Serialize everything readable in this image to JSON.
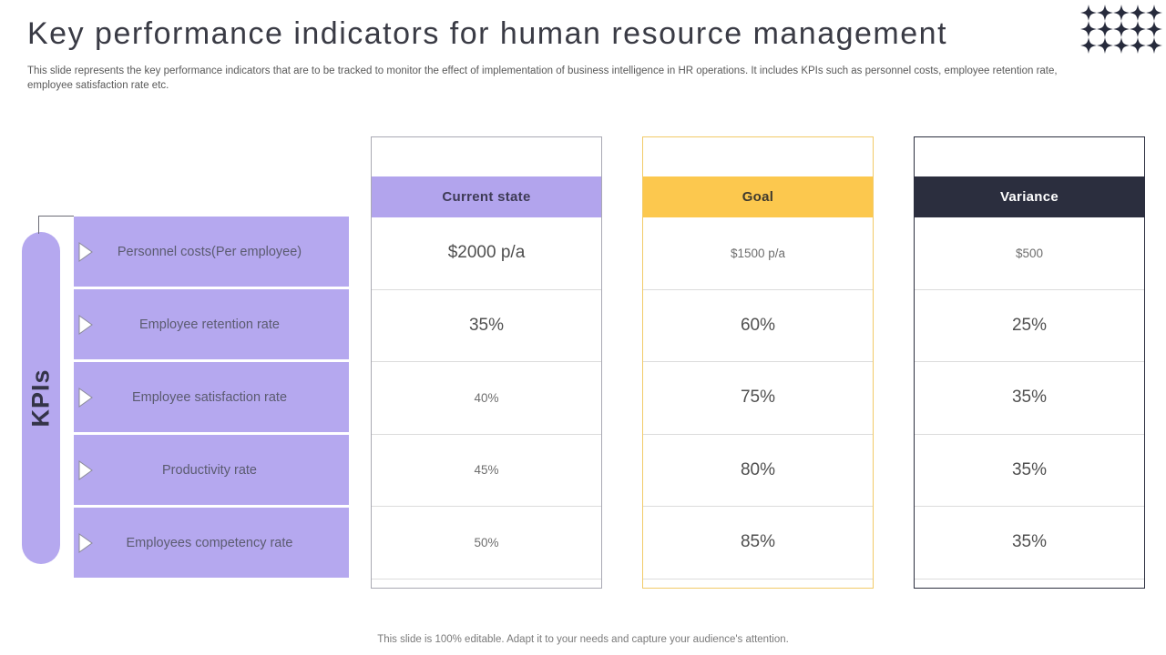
{
  "slide": {
    "title": "Key performance indicators for human resource management",
    "subtitle": "This slide represents the key performance indicators that are to be tracked to monitor the effect of implementation of business intelligence in HR operations. It includes KPIs such as personnel costs, employee retention rate, employee satisfaction rate etc.",
    "footer": "This slide is 100% editable. Adapt it to your needs and capture your audience's attention."
  },
  "kpi_panel": {
    "side_label": "KPIs",
    "items": [
      "Personnel costs(Per employee)",
      "Employee retention rate",
      "Employee satisfaction rate",
      "Productivity rate",
      "Employees competency rate"
    ]
  },
  "columns": [
    {
      "header": "Current state",
      "header_bg": "#b2a4ed",
      "header_text": "#3e3b56",
      "border": "#a9a9b3",
      "values": [
        {
          "text": "$2000 p/a",
          "emphasis": true
        },
        {
          "text": "35%",
          "emphasis": true
        },
        {
          "text": "40%",
          "emphasis": false
        },
        {
          "text": "45%",
          "emphasis": false
        },
        {
          "text": "50%",
          "emphasis": false
        }
      ]
    },
    {
      "header": "Goal",
      "header_bg": "#fcc84e",
      "header_text": "#3f3a2e",
      "border": "#f2ca67",
      "values": [
        {
          "text": "$1500 p/a",
          "emphasis": false
        },
        {
          "text": "60%",
          "emphasis": true
        },
        {
          "text": "75%",
          "emphasis": true
        },
        {
          "text": "80%",
          "emphasis": true
        },
        {
          "text": "85%",
          "emphasis": true
        }
      ]
    },
    {
      "header": "Variance",
      "header_bg": "#2b2e3e",
      "header_text": "#ffffff",
      "border": "#2b2e3e",
      "values": [
        {
          "text": "$500",
          "emphasis": false
        },
        {
          "text": "25%",
          "emphasis": true
        },
        {
          "text": "35%",
          "emphasis": true
        },
        {
          "text": "35%",
          "emphasis": true
        },
        {
          "text": "35%",
          "emphasis": true
        }
      ]
    }
  ],
  "decor": {
    "star_color": "#272b3c",
    "star_rows": 3,
    "star_cols": 5,
    "star_size": 18
  },
  "theme": {
    "purple": "#b5a8ef",
    "row_text_color": "#5b5b70",
    "value_text_color": "#595959"
  }
}
